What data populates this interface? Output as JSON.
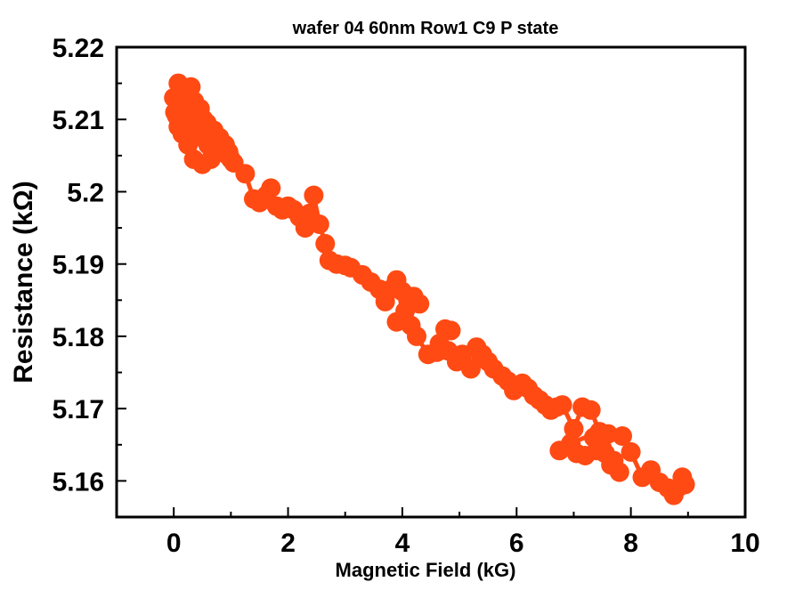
{
  "chart_data": {
    "type": "line",
    "title": "wafer 04 60nm Row1 C9 P state",
    "xlabel": "Magnetic Field (kG)",
    "ylabel": "Resistance (kΩ)",
    "xlim": [
      -1,
      10
    ],
    "ylim": [
      5.155,
      5.22
    ],
    "xticks": [
      0,
      2,
      4,
      6,
      8,
      10
    ],
    "xtick_labels": [
      "0",
      "2",
      "4",
      "6",
      "8",
      "10"
    ],
    "yticks": [
      5.16,
      5.17,
      5.18,
      5.19,
      5.2,
      5.21,
      5.22
    ],
    "ytick_labels": [
      "5.16",
      "5.17",
      "5.18",
      "5.19",
      "5.2",
      "5.21",
      "5.22"
    ],
    "grid": false,
    "legend": "none",
    "marker": "circle",
    "series": [
      {
        "color": "#ff4a14",
        "x": [
          0.0,
          0.02,
          0.08,
          0.12,
          0.2,
          0.3,
          0.36,
          0.46,
          0.52,
          0.58,
          0.7,
          0.8,
          0.9,
          0.96,
          1.0,
          0.8,
          0.6,
          0.5,
          0.4,
          0.3,
          0.22,
          0.15,
          0.1,
          0.05,
          0.08,
          0.15,
          0.25,
          0.35,
          0.5,
          0.65,
          0.8,
          0.95,
          1.05,
          1.25,
          1.4,
          1.5,
          1.62,
          1.7,
          1.8,
          1.9,
          2.0,
          2.1,
          2.2,
          2.3,
          2.38,
          2.45,
          2.55,
          2.65,
          2.72,
          2.85,
          3.0,
          3.1,
          3.3,
          3.45,
          3.6,
          3.7,
          3.8,
          3.9,
          4.0,
          4.1,
          4.2,
          4.3,
          4.05,
          3.9,
          4.15,
          4.25,
          4.45,
          4.6,
          4.75,
          4.85,
          4.65,
          4.8,
          4.95,
          5.05,
          5.2,
          5.3,
          5.4,
          5.5,
          5.6,
          5.75,
          5.85,
          5.95,
          6.1,
          6.2,
          6.3,
          6.4,
          6.5,
          6.6,
          6.7,
          6.8,
          7.0,
          7.15,
          7.3,
          7.45,
          6.95,
          6.75,
          7.05,
          7.2,
          7.4,
          7.55,
          7.7,
          7.8,
          7.65,
          7.5,
          7.35,
          7.6,
          7.85,
          8.0,
          8.2,
          8.35,
          8.5,
          8.65,
          8.75,
          8.85,
          8.95,
          8.9
        ],
        "y": [
          5.213,
          5.211,
          5.215,
          5.214,
          5.213,
          5.2145,
          5.2125,
          5.2115,
          5.21,
          5.2095,
          5.2085,
          5.2075,
          5.2065,
          5.2055,
          5.2045,
          5.2055,
          5.2065,
          5.2075,
          5.2085,
          5.2095,
          5.21,
          5.2105,
          5.211,
          5.2105,
          5.209,
          5.208,
          5.2065,
          5.2045,
          5.2038,
          5.2045,
          5.2055,
          5.205,
          5.204,
          5.2025,
          5.199,
          5.1985,
          5.1995,
          5.2005,
          5.198,
          5.1975,
          5.198,
          5.1975,
          5.1965,
          5.195,
          5.197,
          5.1995,
          5.1955,
          5.1928,
          5.1905,
          5.19,
          5.1898,
          5.1895,
          5.1885,
          5.1875,
          5.1865,
          5.1848,
          5.1865,
          5.1878,
          5.1862,
          5.185,
          5.1855,
          5.1845,
          5.1835,
          5.182,
          5.1815,
          5.18,
          5.1775,
          5.1778,
          5.181,
          5.1808,
          5.179,
          5.178,
          5.1765,
          5.1775,
          5.1755,
          5.1785,
          5.1775,
          5.1765,
          5.1755,
          5.1745,
          5.1738,
          5.1725,
          5.1735,
          5.1728,
          5.1718,
          5.1712,
          5.1705,
          5.1698,
          5.1702,
          5.1705,
          5.1672,
          5.1702,
          5.1698,
          5.1668,
          5.1652,
          5.1642,
          5.1638,
          5.1635,
          5.1642,
          5.1638,
          5.1628,
          5.1612,
          5.1622,
          5.1645,
          5.166,
          5.1665,
          5.1662,
          5.164,
          5.1605,
          5.1615,
          5.1598,
          5.159,
          5.158,
          5.1592,
          5.1595,
          5.1605
        ]
      }
    ]
  }
}
